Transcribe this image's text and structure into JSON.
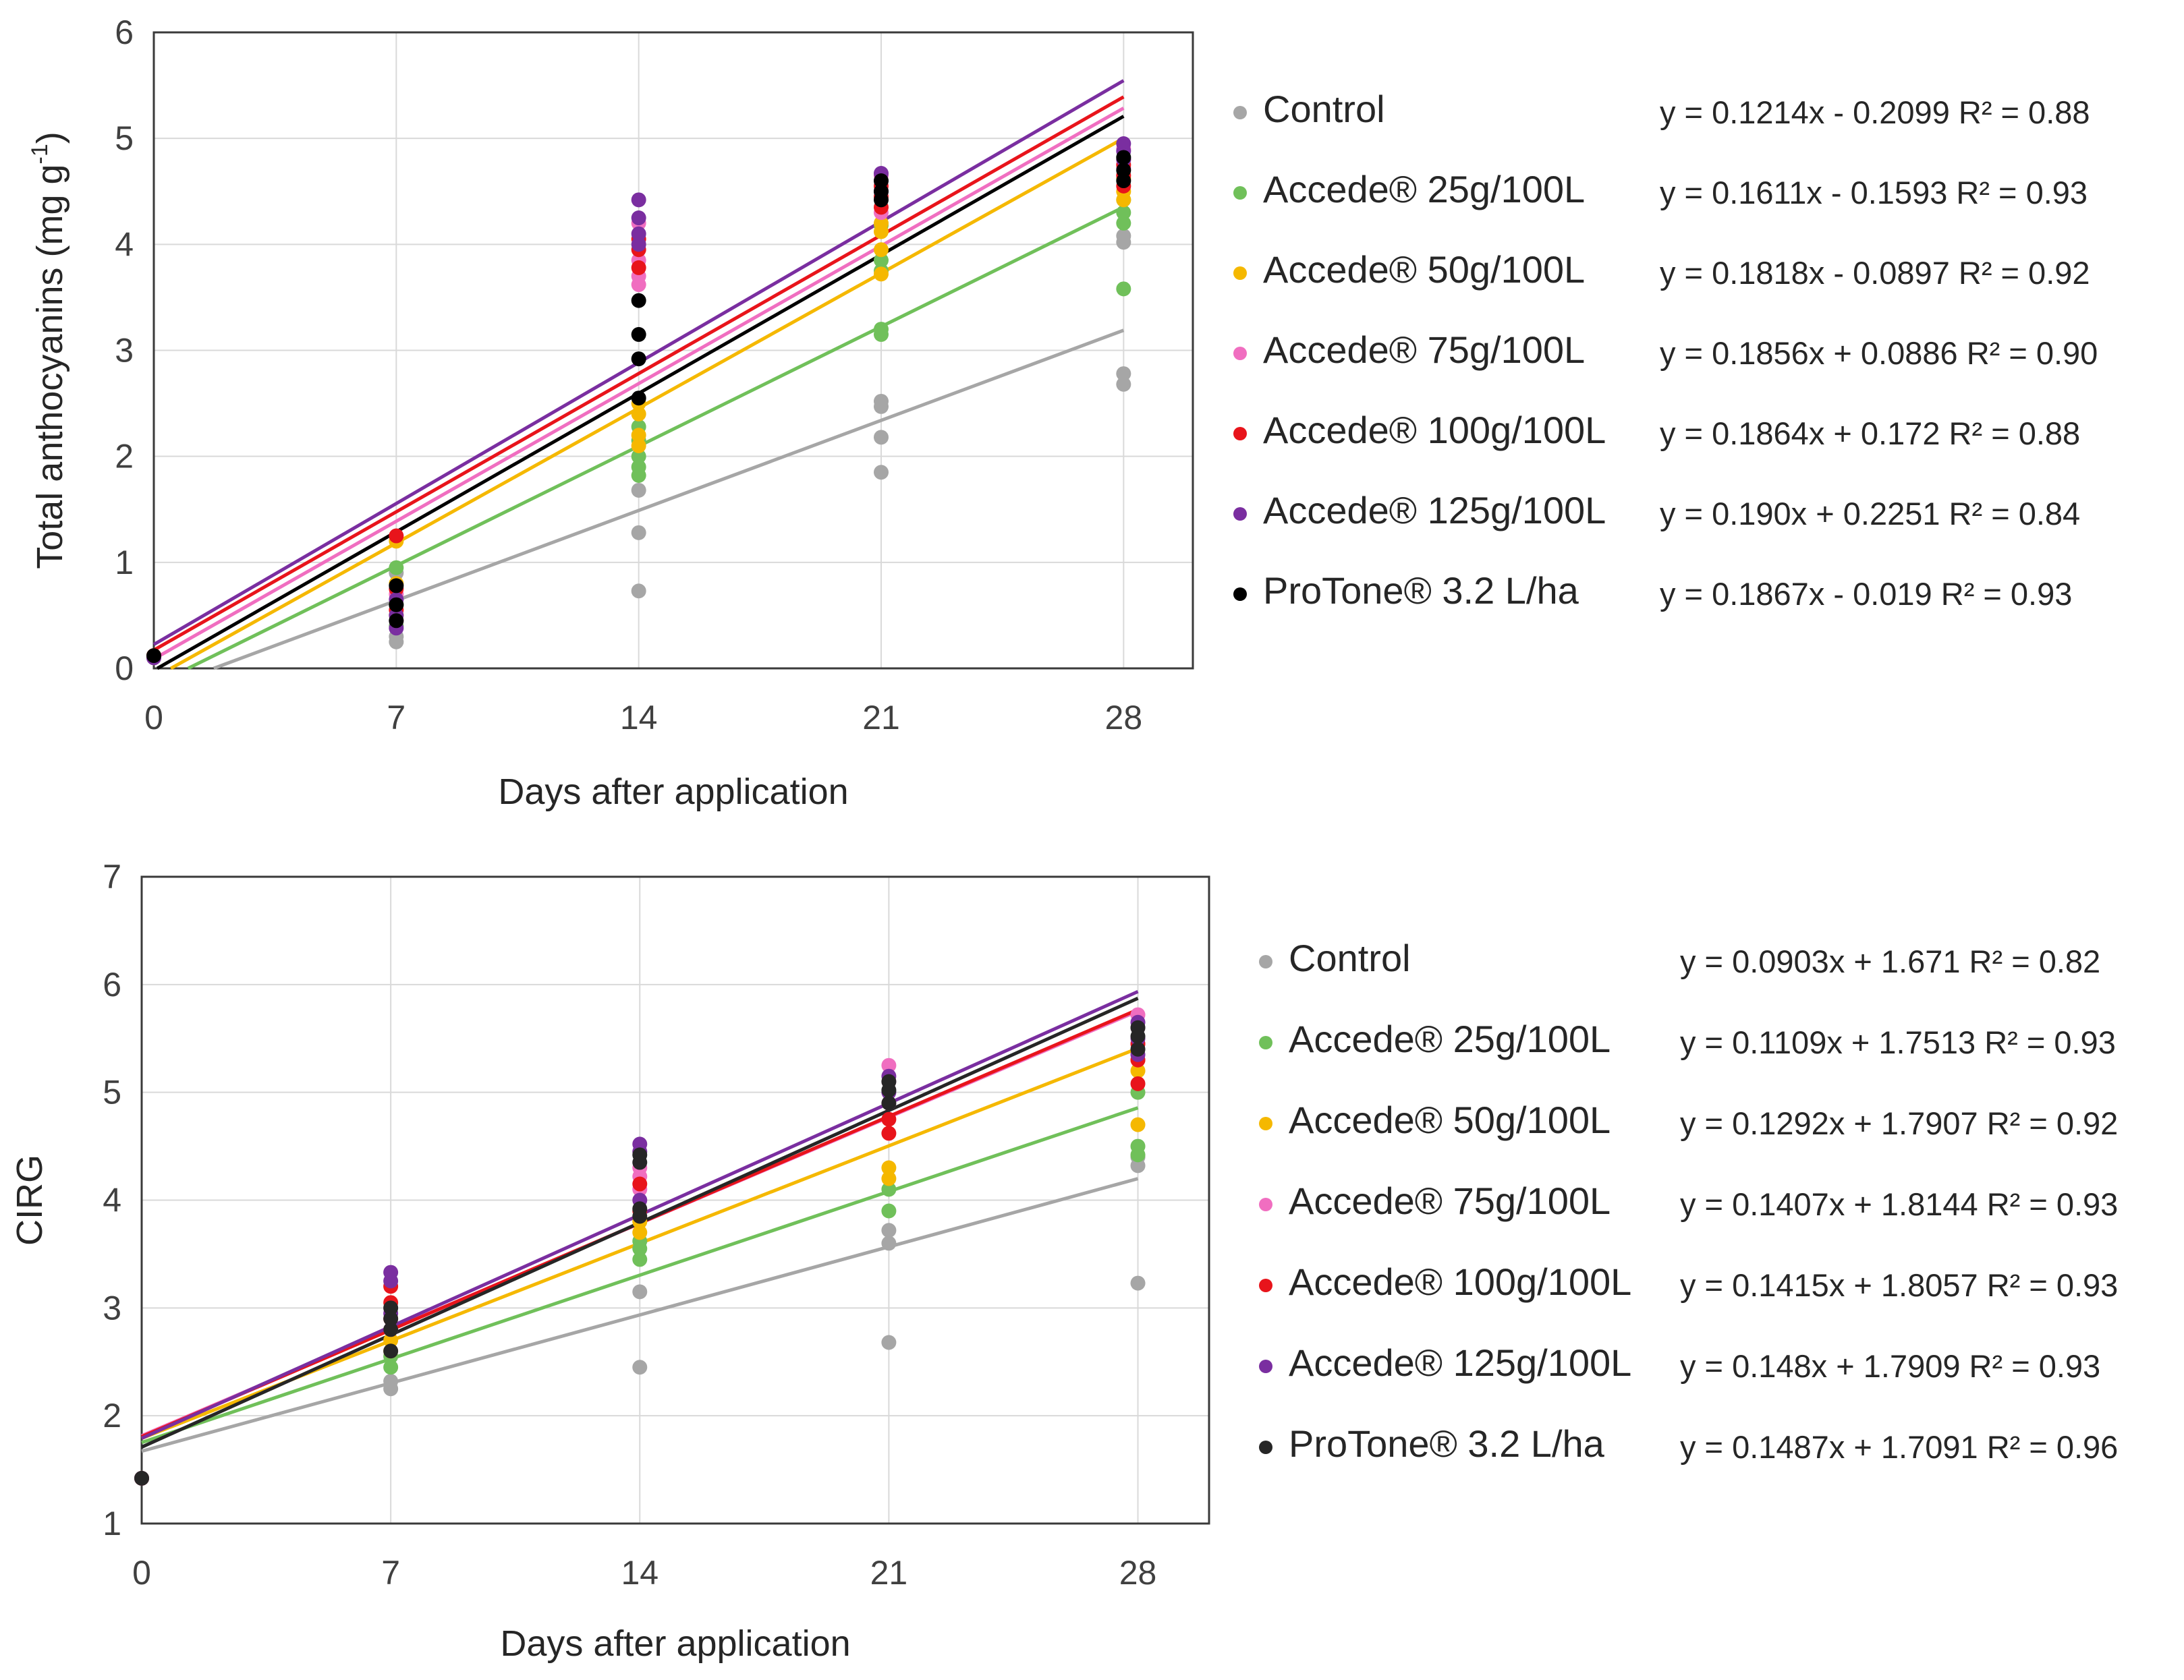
{
  "chart_data": [
    {
      "type": "scatter",
      "xlabel": "Days after application",
      "ylabel": "Total anthocyanins (mg g",
      "ylabel_sup": "-1",
      "ylabel_close": ")",
      "xticks": [
        0,
        7,
        14,
        21,
        28
      ],
      "yticks": [
        0,
        1,
        2,
        3,
        4,
        5,
        6
      ],
      "xlim": [
        0,
        30
      ],
      "ylim": [
        0,
        6
      ],
      "grid": true,
      "legend_position": "right",
      "series": [
        {
          "name": "Control",
          "color": "#a6a6a6",
          "equation": "y = 0.1214x - 0.2099  R² = 0.88",
          "slope": 0.1214,
          "intercept": -0.2099,
          "fit_start": 1.73,
          "points": [
            [
              0,
              0.1
            ],
            [
              7,
              0.25
            ],
            [
              7,
              0.3
            ],
            [
              7,
              0.6
            ],
            [
              7,
              0.9
            ],
            [
              14,
              0.73
            ],
            [
              14,
              1.28
            ],
            [
              14,
              1.68
            ],
            [
              21,
              1.85
            ],
            [
              21,
              2.18
            ],
            [
              21,
              2.47
            ],
            [
              21,
              2.52
            ],
            [
              28,
              2.68
            ],
            [
              28,
              2.78
            ],
            [
              28,
              4.02
            ],
            [
              28,
              4.08
            ]
          ]
        },
        {
          "name": "Accede® 25g/100L",
          "color": "#70c05a",
          "equation": "y = 0.1611x - 0.1593  R² = 0.93",
          "slope": 0.1611,
          "intercept": -0.1593,
          "fit_start": 0.99,
          "points": [
            [
              0,
              0.1
            ],
            [
              7,
              0.4
            ],
            [
              7,
              0.6
            ],
            [
              7,
              0.95
            ],
            [
              14,
              1.82
            ],
            [
              14,
              1.9
            ],
            [
              14,
              2.0
            ],
            [
              14,
              2.15
            ],
            [
              14,
              2.28
            ],
            [
              21,
              3.15
            ],
            [
              21,
              3.2
            ],
            [
              21,
              3.75
            ],
            [
              21,
              3.85
            ],
            [
              21,
              4.18
            ],
            [
              28,
              3.58
            ],
            [
              28,
              4.2
            ],
            [
              28,
              4.3
            ],
            [
              28,
              4.42
            ]
          ]
        },
        {
          "name": "Accede® 50g/100L",
          "color": "#f5b800",
          "equation": "y = 0.1818x - 0.0897  R² = 0.92",
          "slope": 0.1818,
          "intercept": -0.0897,
          "fit_start": 0.49,
          "points": [
            [
              0,
              0.12
            ],
            [
              7,
              0.5
            ],
            [
              7,
              0.8
            ],
            [
              7,
              1.2
            ],
            [
              14,
              2.1
            ],
            [
              14,
              2.2
            ],
            [
              14,
              2.4
            ],
            [
              14,
              2.5
            ],
            [
              21,
              3.72
            ],
            [
              21,
              3.95
            ],
            [
              21,
              4.12
            ],
            [
              21,
              4.2
            ],
            [
              28,
              4.42
            ],
            [
              28,
              4.5
            ],
            [
              28,
              4.62
            ]
          ]
        },
        {
          "name": "Accede® 75g/100L",
          "color": "#f06ec0",
          "equation": "y = 0.1856x + 0.0886  R² = 0.90",
          "slope": 0.1856,
          "intercept": 0.0886,
          "fit_start": 0,
          "points": [
            [
              0,
              0.1
            ],
            [
              7,
              0.45
            ],
            [
              7,
              0.7
            ],
            [
              14,
              3.62
            ],
            [
              14,
              3.7
            ],
            [
              14,
              3.85
            ],
            [
              14,
              4.2
            ],
            [
              21,
              4.3
            ],
            [
              21,
              4.5
            ],
            [
              21,
              4.65
            ],
            [
              28,
              4.72
            ],
            [
              28,
              4.8
            ],
            [
              28,
              4.9
            ]
          ]
        },
        {
          "name": "Accede® 100g/100L",
          "color": "#e8141b",
          "equation": "y = 0.1864x + 0.172  R² = 0.88",
          "slope": 0.1864,
          "intercept": 0.172,
          "fit_start": 0,
          "points": [
            [
              0,
              0.12
            ],
            [
              7,
              0.55
            ],
            [
              7,
              0.75
            ],
            [
              7,
              1.25
            ],
            [
              14,
              3.78
            ],
            [
              14,
              3.95
            ],
            [
              14,
              4.05
            ],
            [
              21,
              4.35
            ],
            [
              21,
              4.45
            ],
            [
              21,
              4.55
            ],
            [
              28,
              4.55
            ],
            [
              28,
              4.65
            ],
            [
              28,
              4.75
            ]
          ]
        },
        {
          "name": "Accede® 125g/100L",
          "color": "#7a2ea0",
          "equation": "y = 0.190x + 0.2251  R² = 0.84",
          "slope": 0.19,
          "intercept": 0.2251,
          "fit_start": 0,
          "points": [
            [
              0,
              0.1
            ],
            [
              7,
              0.38
            ],
            [
              7,
              0.5
            ],
            [
              7,
              0.65
            ],
            [
              14,
              4.0
            ],
            [
              14,
              4.1
            ],
            [
              14,
              4.25
            ],
            [
              14,
              4.42
            ],
            [
              21,
              4.5
            ],
            [
              21,
              4.6
            ],
            [
              21,
              4.67
            ],
            [
              28,
              4.8
            ],
            [
              28,
              4.88
            ],
            [
              28,
              4.95
            ]
          ]
        },
        {
          "name": "ProTone® 3.2 L/ha",
          "color": "#000000",
          "equation": "y = 0.1867x - 0.019  R² = 0.93",
          "slope": 0.1867,
          "intercept": -0.019,
          "fit_start": 0.1,
          "points": [
            [
              0,
              0.12
            ],
            [
              7,
              0.45
            ],
            [
              7,
              0.6
            ],
            [
              7,
              0.78
            ],
            [
              14,
              2.55
            ],
            [
              14,
              2.92
            ],
            [
              14,
              3.15
            ],
            [
              14,
              3.47
            ],
            [
              21,
              4.42
            ],
            [
              21,
              4.5
            ],
            [
              21,
              4.6
            ],
            [
              28,
              4.6
            ],
            [
              28,
              4.7
            ],
            [
              28,
              4.82
            ]
          ]
        }
      ]
    },
    {
      "type": "scatter",
      "xlabel": "Days after application",
      "ylabel": "CIRG",
      "xticks": [
        0,
        7,
        14,
        21,
        28
      ],
      "yticks": [
        1,
        2,
        3,
        4,
        5,
        6,
        7
      ],
      "xlim": [
        0,
        30
      ],
      "ylim": [
        1,
        7
      ],
      "grid": true,
      "legend_position": "right",
      "series": [
        {
          "name": "Control",
          "color": "#a6a6a6",
          "equation": "y = 0.0903x + 1.671  R² = 0.82",
          "slope": 0.0903,
          "intercept": 1.671,
          "fit_start": 0,
          "points": [
            [
              0,
              1.42
            ],
            [
              7,
              2.25
            ],
            [
              7,
              2.32
            ],
            [
              14,
              2.45
            ],
            [
              14,
              3.15
            ],
            [
              21,
              2.68
            ],
            [
              21,
              3.6
            ],
            [
              21,
              3.72
            ],
            [
              28,
              3.23
            ],
            [
              28,
              4.32
            ],
            [
              28,
              4.4
            ]
          ]
        },
        {
          "name": "Accede® 25g/100L",
          "color": "#70c05a",
          "equation": "y = 0.1109x + 1.7513  R² = 0.93",
          "slope": 0.1109,
          "intercept": 1.7513,
          "fit_start": 0,
          "points": [
            [
              0,
              1.42
            ],
            [
              7,
              2.45
            ],
            [
              7,
              2.55
            ],
            [
              14,
              3.45
            ],
            [
              14,
              3.55
            ],
            [
              14,
              3.62
            ],
            [
              21,
              3.9
            ],
            [
              21,
              4.1
            ],
            [
              28,
              4.42
            ],
            [
              28,
              4.5
            ],
            [
              28,
              5.0
            ]
          ]
        },
        {
          "name": "Accede® 50g/100L",
          "color": "#f5b800",
          "equation": "y = 0.1292x + 1.7907  R² = 0.92",
          "slope": 0.1292,
          "intercept": 1.7907,
          "fit_start": 0,
          "points": [
            [
              0,
              1.42
            ],
            [
              7,
              2.6
            ],
            [
              7,
              2.7
            ],
            [
              14,
              3.7
            ],
            [
              14,
              3.8
            ],
            [
              21,
              4.2
            ],
            [
              21,
              4.3
            ],
            [
              28,
              4.7
            ],
            [
              28,
              5.2
            ],
            [
              28,
              5.3
            ]
          ]
        },
        {
          "name": "Accede® 75g/100L",
          "color": "#f06ec0",
          "equation": "y = 0.1407x + 1.8144  R² = 0.93",
          "slope": 0.1407,
          "intercept": 1.8144,
          "fit_start": 0,
          "points": [
            [
              0,
              1.42
            ],
            [
              7,
              2.8
            ],
            [
              7,
              3.0
            ],
            [
              14,
              4.1
            ],
            [
              14,
              4.22
            ],
            [
              14,
              4.3
            ],
            [
              21,
              4.9
            ],
            [
              21,
              5.1
            ],
            [
              21,
              5.25
            ],
            [
              28,
              5.45
            ],
            [
              28,
              5.6
            ],
            [
              28,
              5.72
            ]
          ]
        },
        {
          "name": "Accede® 100g/100L",
          "color": "#e8141b",
          "equation": "y = 0.1415x + 1.8057  R² = 0.93",
          "slope": 0.1415,
          "intercept": 1.8057,
          "fit_start": 0,
          "points": [
            [
              0,
              1.42
            ],
            [
              7,
              2.9
            ],
            [
              7,
              3.05
            ],
            [
              7,
              3.2
            ],
            [
              14,
              3.9
            ],
            [
              14,
              4.15
            ],
            [
              21,
              4.62
            ],
            [
              21,
              4.75
            ],
            [
              28,
              5.08
            ],
            [
              28,
              5.3
            ],
            [
              28,
              5.45
            ]
          ]
        },
        {
          "name": "Accede® 125g/100L",
          "color": "#7a2ea0",
          "equation": "y = 0.148x + 1.7909  R² = 0.93",
          "slope": 0.148,
          "intercept": 1.7909,
          "fit_start": 0,
          "points": [
            [
              0,
              1.42
            ],
            [
              7,
              2.95
            ],
            [
              7,
              3.25
            ],
            [
              7,
              3.33
            ],
            [
              14,
              4.0
            ],
            [
              14,
              4.45
            ],
            [
              14,
              4.52
            ],
            [
              21,
              5.0
            ],
            [
              21,
              5.15
            ],
            [
              28,
              5.35
            ],
            [
              28,
              5.5
            ],
            [
              28,
              5.65
            ]
          ]
        },
        {
          "name": "ProTone® 3.2 L/ha",
          "color": "#262626",
          "equation": "y = 0.1487x + 1.7091  R² = 0.96",
          "slope": 0.1487,
          "intercept": 1.7091,
          "fit_start": 0,
          "points": [
            [
              0,
              1.42
            ],
            [
              7,
              2.6
            ],
            [
              7,
              2.8
            ],
            [
              7,
              2.9
            ],
            [
              7,
              3.0
            ],
            [
              14,
              3.85
            ],
            [
              14,
              3.92
            ],
            [
              14,
              4.35
            ],
            [
              14,
              4.42
            ],
            [
              21,
              4.9
            ],
            [
              21,
              5.02
            ],
            [
              21,
              5.1
            ],
            [
              28,
              5.4
            ],
            [
              28,
              5.52
            ],
            [
              28,
              5.6
            ]
          ]
        }
      ]
    }
  ]
}
